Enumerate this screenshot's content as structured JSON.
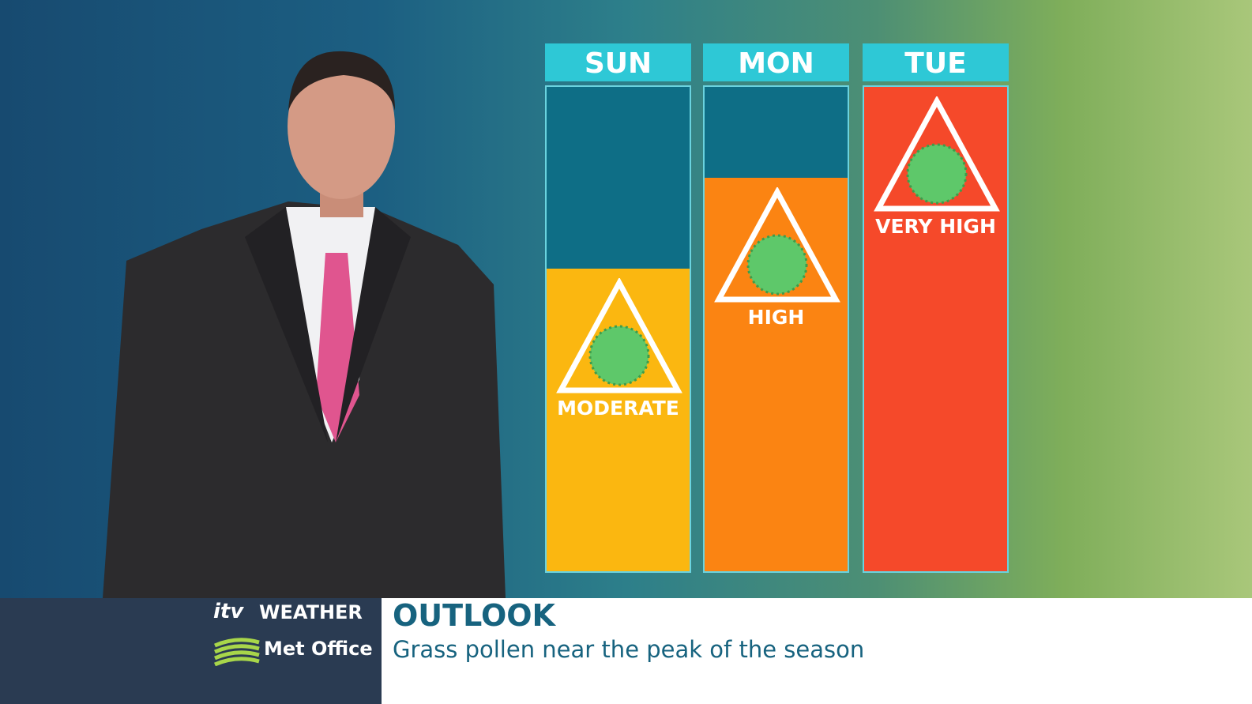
{
  "branding": {
    "logo": "itv",
    "channel": "WEATHER",
    "partner": "Met Office"
  },
  "caption": {
    "title": "OUTLOOK",
    "subtitle": "Grass pollen near the peak of the season"
  },
  "forecast": [
    {
      "day": "SUN",
      "level": "MODERATE"
    },
    {
      "day": "MON",
      "level": "HIGH"
    },
    {
      "day": "TUE",
      "level": "VERY HIGH"
    }
  ]
}
